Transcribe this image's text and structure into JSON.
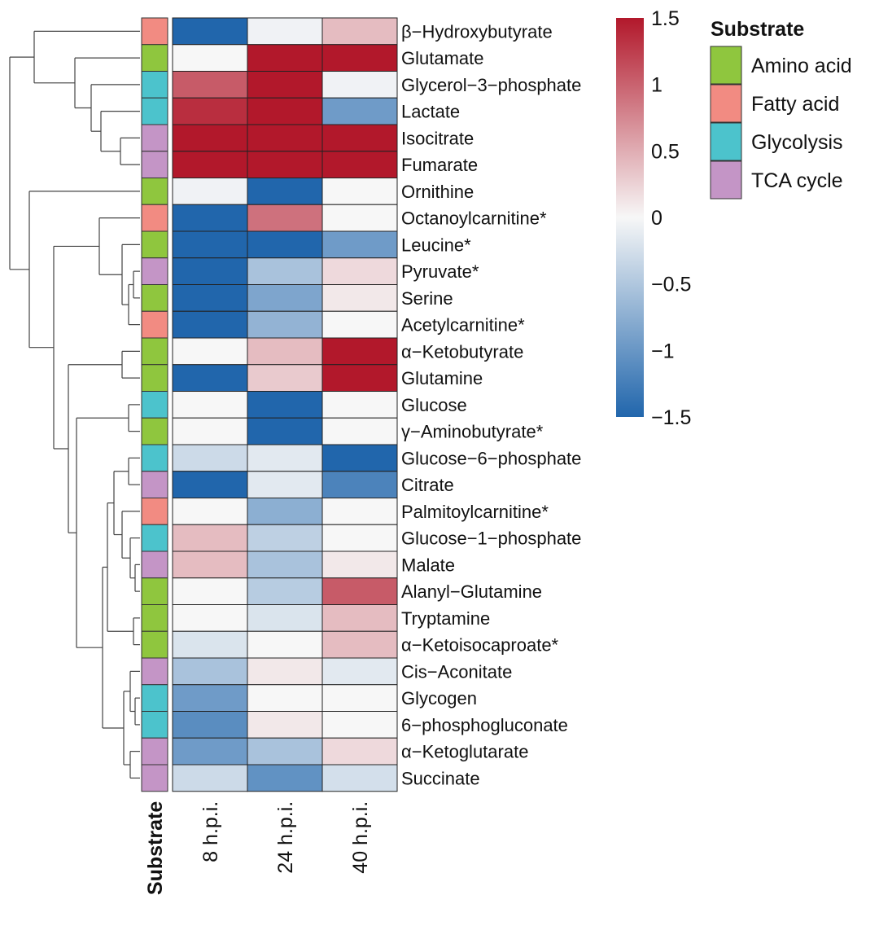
{
  "chart_data": {
    "type": "heatmap",
    "columns": [
      "8 h.p.i.",
      "24 h.p.i.",
      "40 h.p.i."
    ],
    "annotation_label": "Substrate",
    "rows": [
      {
        "name": "β−Hydroxybutyrate",
        "substrate": "Fatty acid",
        "values": [
          -1.5,
          -0.05,
          0.4
        ]
      },
      {
        "name": "Glutamate",
        "substrate": "Amino acid",
        "values": [
          0.0,
          1.5,
          1.5
        ]
      },
      {
        "name": "Glycerol−3−phosphate",
        "substrate": "Glycolysis",
        "values": [
          1.05,
          1.5,
          -0.05
        ]
      },
      {
        "name": "Lactate",
        "substrate": "Glycolysis",
        "values": [
          1.35,
          1.5,
          -0.95
        ]
      },
      {
        "name": "Isocitrate",
        "substrate": "TCA cycle",
        "values": [
          1.5,
          1.5,
          1.5
        ]
      },
      {
        "name": "Fumarate",
        "substrate": "TCA cycle",
        "values": [
          1.5,
          1.5,
          1.5
        ]
      },
      {
        "name": "Ornithine",
        "substrate": "Amino acid",
        "values": [
          -0.05,
          -1.5,
          0.0
        ]
      },
      {
        "name": "Octanoylcarnitine*",
        "substrate": "Fatty acid",
        "values": [
          -1.5,
          0.9,
          0.0
        ]
      },
      {
        "name": "Leucine*",
        "substrate": "Amino acid",
        "values": [
          -1.5,
          -1.5,
          -0.95
        ]
      },
      {
        "name": "Pyruvate*",
        "substrate": "TCA cycle",
        "values": [
          -1.5,
          -0.55,
          0.2
        ]
      },
      {
        "name": "Serine",
        "substrate": "Amino acid",
        "values": [
          -1.5,
          -0.85,
          0.1
        ]
      },
      {
        "name": "Acetylcarnitine*",
        "substrate": "Fatty acid",
        "values": [
          -1.5,
          -0.7,
          0.0
        ]
      },
      {
        "name": "α−Ketobutyrate",
        "substrate": "Amino acid",
        "values": [
          0.0,
          0.4,
          1.5
        ]
      },
      {
        "name": "Glutamine",
        "substrate": "Amino acid",
        "values": [
          -1.5,
          0.3,
          1.5
        ]
      },
      {
        "name": "Glucose",
        "substrate": "Glycolysis",
        "values": [
          0.0,
          -1.5,
          0.0
        ]
      },
      {
        "name": "γ−Aminobutyrate*",
        "substrate": "Amino acid",
        "values": [
          0.0,
          -1.5,
          0.0
        ]
      },
      {
        "name": "Glucose−6−phosphate",
        "substrate": "Glycolysis",
        "values": [
          -0.3,
          -0.15,
          -1.5
        ]
      },
      {
        "name": "Citrate",
        "substrate": "TCA cycle",
        "values": [
          -1.5,
          -0.15,
          -1.2
        ]
      },
      {
        "name": "Palmitoylcarnitine*",
        "substrate": "Fatty acid",
        "values": [
          0.0,
          -0.75,
          0.0
        ]
      },
      {
        "name": "Glucose−1−phosphate",
        "substrate": "Glycolysis",
        "values": [
          0.4,
          -0.4,
          0.0
        ]
      },
      {
        "name": "Malate",
        "substrate": "TCA cycle",
        "values": [
          0.4,
          -0.55,
          0.1
        ]
      },
      {
        "name": "Alanyl−Glutamine",
        "substrate": "Amino acid",
        "values": [
          0.0,
          -0.45,
          1.05
        ]
      },
      {
        "name": "Tryptamine",
        "substrate": "Amino acid",
        "values": [
          0.0,
          -0.2,
          0.4
        ]
      },
      {
        "name": "α−Ketoisocaproate*",
        "substrate": "Amino acid",
        "values": [
          -0.2,
          0.0,
          0.4
        ]
      },
      {
        "name": "Cis−Aconitate",
        "substrate": "TCA cycle",
        "values": [
          -0.55,
          0.1,
          -0.15
        ]
      },
      {
        "name": "Glycogen",
        "substrate": "Glycolysis",
        "values": [
          -0.95,
          0.0,
          0.0
        ]
      },
      {
        "name": "6−phosphogluconate",
        "substrate": "Glycolysis",
        "values": [
          -1.1,
          0.1,
          0.0
        ]
      },
      {
        "name": "α−Ketoglutarate",
        "substrate": "TCA cycle",
        "values": [
          -0.95,
          -0.55,
          0.2
        ]
      },
      {
        "name": "Succinate",
        "substrate": "TCA cycle",
        "values": [
          -0.3,
          -1.05,
          -0.25
        ]
      }
    ],
    "color_scale": {
      "min": -1.5,
      "max": 1.5,
      "low_color": "#2166ac",
      "mid_color": "#f7f7f7",
      "high_color": "#b2182b",
      "ticks": [
        1.5,
        1,
        0.5,
        0,
        -0.5,
        -1,
        -1.5
      ],
      "tick_labels": [
        "1.5",
        "1",
        "0.5",
        "0",
        "−0.5",
        "−1",
        "−1.5"
      ]
    },
    "legend": {
      "title": "Substrate",
      "entries": [
        {
          "label": "Amino acid",
          "color": "#8fc63e"
        },
        {
          "label": "Fatty acid",
          "color": "#f28b82"
        },
        {
          "label": "Glycolysis",
          "color": "#4cc3cc"
        },
        {
          "label": "TCA cycle",
          "color": "#c495c6"
        }
      ]
    }
  }
}
